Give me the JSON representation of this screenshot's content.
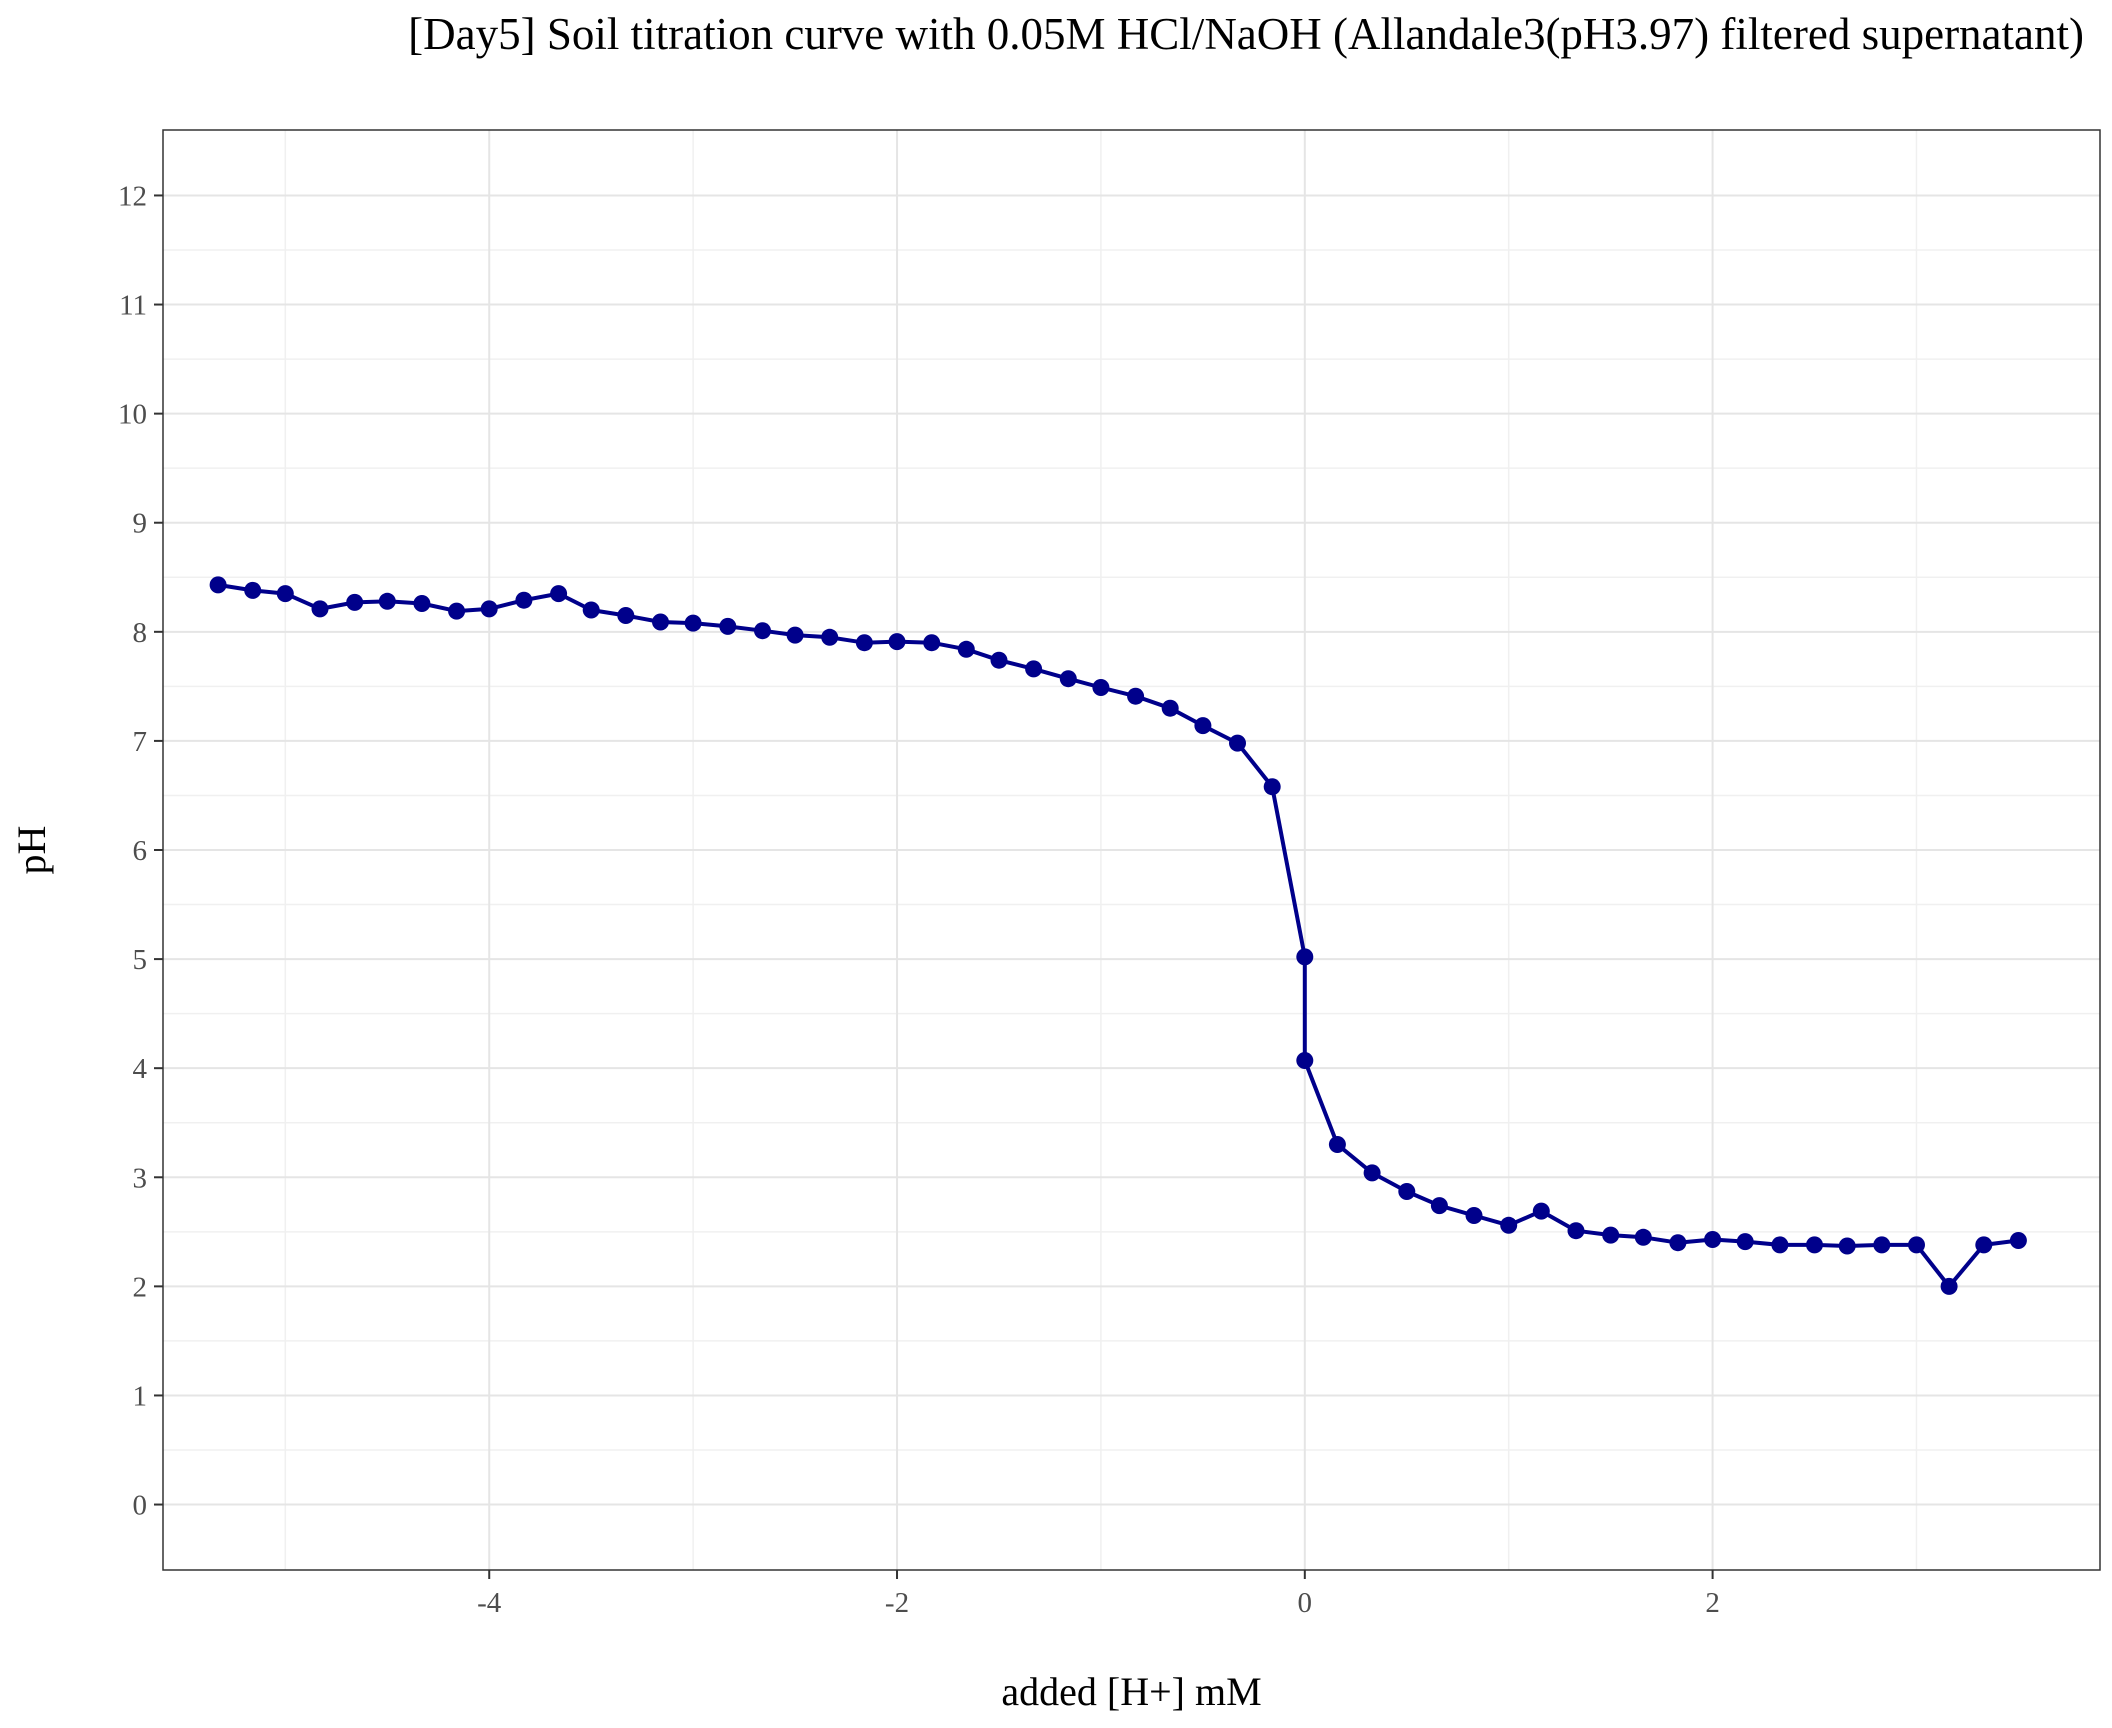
{
  "chart_data": {
    "type": "line",
    "title": "[Day5] Soil titration curve with 0.05M HCl/NaOH (Allandale3(pH3.97) filtered supernatant)",
    "xlabel": "added [H+] mM",
    "ylabel": "pH",
    "xlim": [
      -5.6,
      3.9
    ],
    "ylim": [
      -0.6,
      12.6
    ],
    "xticks": [
      -4,
      -2,
      0,
      2
    ],
    "yticks": [
      0,
      1,
      2,
      3,
      4,
      5,
      6,
      7,
      8,
      9,
      10,
      11,
      12
    ],
    "grid": true,
    "series": [
      {
        "color": "#00008B",
        "points": [
          [
            -5.33,
            8.43
          ],
          [
            -5.16,
            8.38
          ],
          [
            -5.0,
            8.35
          ],
          [
            -4.83,
            8.21
          ],
          [
            -4.66,
            8.27
          ],
          [
            -4.5,
            8.28
          ],
          [
            -4.33,
            8.26
          ],
          [
            -4.16,
            8.19
          ],
          [
            -4.0,
            8.21
          ],
          [
            -3.83,
            8.29
          ],
          [
            -3.66,
            8.35
          ],
          [
            -3.5,
            8.2
          ],
          [
            -3.33,
            8.15
          ],
          [
            -3.16,
            8.09
          ],
          [
            -3.0,
            8.08
          ],
          [
            -2.83,
            8.05
          ],
          [
            -2.66,
            8.01
          ],
          [
            -2.5,
            7.97
          ],
          [
            -2.33,
            7.95
          ],
          [
            -2.16,
            7.9
          ],
          [
            -2.0,
            7.91
          ],
          [
            -1.83,
            7.9
          ],
          [
            -1.66,
            7.84
          ],
          [
            -1.5,
            7.74
          ],
          [
            -1.33,
            7.66
          ],
          [
            -1.16,
            7.57
          ],
          [
            -1.0,
            7.49
          ],
          [
            -0.83,
            7.41
          ],
          [
            -0.66,
            7.3
          ],
          [
            -0.5,
            7.14
          ],
          [
            -0.33,
            6.98
          ],
          [
            -0.16,
            6.58
          ],
          [
            0.0,
            5.02
          ],
          [
            0.0,
            4.07
          ],
          [
            0.16,
            3.3
          ],
          [
            0.33,
            3.04
          ],
          [
            0.5,
            2.87
          ],
          [
            0.66,
            2.74
          ],
          [
            0.83,
            2.65
          ],
          [
            1.0,
            2.56
          ],
          [
            1.16,
            2.69
          ],
          [
            1.33,
            2.51
          ],
          [
            1.5,
            2.47
          ],
          [
            1.66,
            2.45
          ],
          [
            1.83,
            2.4
          ],
          [
            2.0,
            2.43
          ],
          [
            2.16,
            2.41
          ],
          [
            2.33,
            2.38
          ],
          [
            2.5,
            2.38
          ],
          [
            2.66,
            2.37
          ],
          [
            2.83,
            2.38
          ],
          [
            3.0,
            2.38
          ],
          [
            3.16,
            2.0
          ],
          [
            3.33,
            2.38
          ],
          [
            3.5,
            2.42
          ]
        ]
      }
    ]
  }
}
